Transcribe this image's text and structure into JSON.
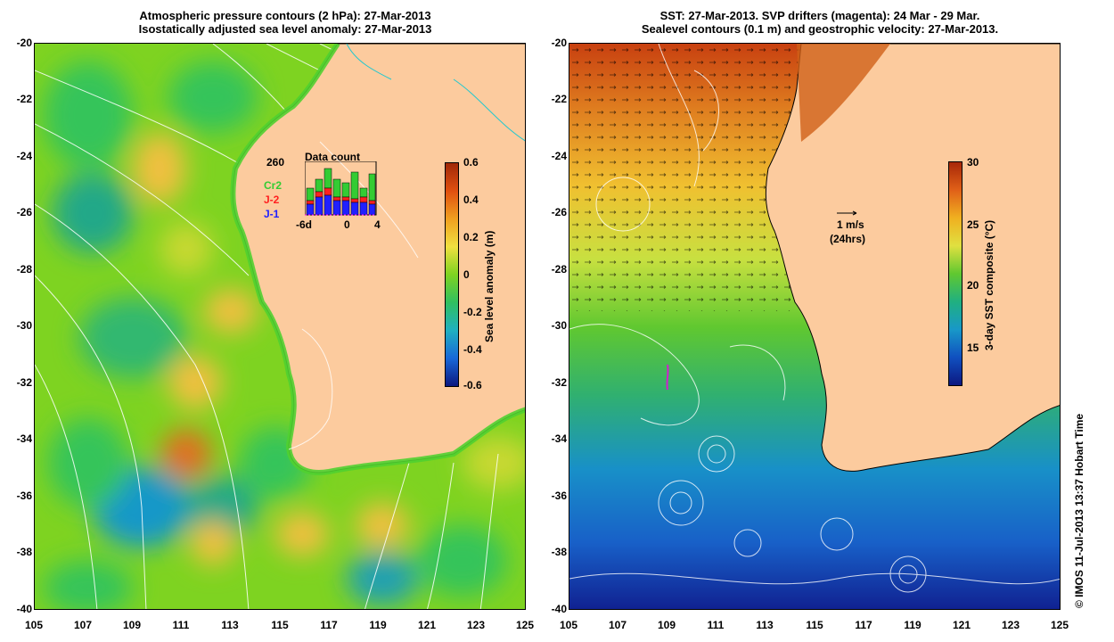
{
  "left": {
    "title_line1": "Atmospheric pressure contours (2 hPa): 27-Mar-2013",
    "title_line2": "Isostatically adjusted sea level anomaly: 27-Mar-2013",
    "colorbar_label": "Sea level anomaly (m)",
    "colorbar_ticks": [
      "0.6",
      "0.4",
      "0.2",
      "0",
      "-0.2",
      "-0.4",
      "-0.6"
    ],
    "inset": {
      "title": "Data count",
      "max_label": "260",
      "series": [
        "Cr2",
        "J-2",
        "J-1"
      ],
      "series_colors": [
        "#33cc33",
        "#ff2020",
        "#2020ff"
      ],
      "xticks": [
        "-6d",
        "0",
        "4"
      ]
    }
  },
  "right": {
    "title_line1": "SST: 27-Mar-2013. SVP drifters (magenta): 24 Mar - 29 Mar.",
    "title_line2": "Sealevel contours (0.1 m) and geostrophic velocity: 27-Mar-2013.",
    "colorbar_label": "3-day SST composite (°C)",
    "colorbar_ticks": [
      "30",
      "25",
      "20",
      "15"
    ],
    "scale_label": "1 m/s",
    "scale_sublabel": "(24hrs)"
  },
  "axes": {
    "y_labels": [
      "-20",
      "-22",
      "-24",
      "-26",
      "-28",
      "-30",
      "-32",
      "-34",
      "-36",
      "-38",
      "-40"
    ],
    "x_labels": [
      "105",
      "107",
      "109",
      "111",
      "113",
      "115",
      "117",
      "119",
      "121",
      "123",
      "125"
    ]
  },
  "credit": "© IMOS 11-Jul-2013 13:37 Hobart Time",
  "colors": {
    "land": "#fccb9e",
    "sla_high": "#b03010",
    "sla_low": "#102080",
    "sst_warm": "#c03010",
    "sst_cool": "#1030a0"
  }
}
